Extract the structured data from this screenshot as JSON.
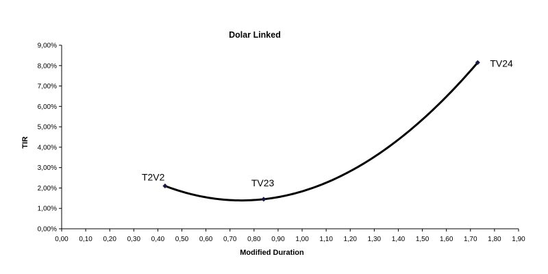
{
  "chart_data": {
    "type": "scatter",
    "title": "Dolar Linked",
    "xlabel": "Modified Duration",
    "ylabel": "TIR",
    "xlim": [
      0,
      1.9
    ],
    "ylim": [
      0,
      9
    ],
    "x_ticks": [
      "0,00",
      "0,10",
      "0,20",
      "0,30",
      "0,40",
      "0,50",
      "0,60",
      "0,70",
      "0,80",
      "0,90",
      "1,00",
      "1,10",
      "1,20",
      "1,30",
      "1,40",
      "1,50",
      "1,60",
      "1,70",
      "1,80",
      "1,90"
    ],
    "y_ticks": [
      "0,00%",
      "1,00%",
      "2,00%",
      "3,00%",
      "4,00%",
      "5,00%",
      "6,00%",
      "7,00%",
      "8,00%",
      "9,00%"
    ],
    "grid": false,
    "legend": "none",
    "trendline": "polynomial (order 2)",
    "series": [
      {
        "points": [
          {
            "label": "T2V2",
            "x": 0.43,
            "y": 2.1
          },
          {
            "label": "TV23",
            "x": 0.84,
            "y": 1.45
          },
          {
            "label": "TV24",
            "x": 1.73,
            "y": 8.15
          }
        ],
        "color": "#1a1a40"
      }
    ],
    "curve_color": "#000000"
  }
}
